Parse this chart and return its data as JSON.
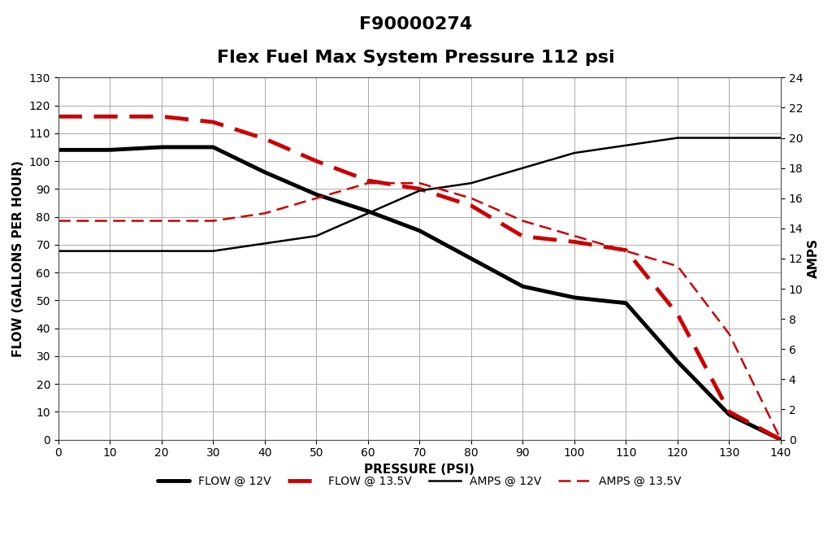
{
  "title1": "F90000274",
  "title2": "Flex Fuel Max System Pressure 112 psi",
  "xlabel": "PRESSURE (PSI)",
  "ylabel_left": "FLOW (GALLONS PER HOUR)",
  "ylabel_right": "AMPS",
  "pressure": [
    0,
    10,
    20,
    30,
    40,
    50,
    60,
    70,
    80,
    90,
    100,
    110,
    120,
    130,
    140
  ],
  "flow_12v": [
    104,
    104,
    105,
    105,
    96,
    88,
    82,
    75,
    65,
    55,
    51,
    49,
    28,
    9,
    0
  ],
  "flow_13v": [
    116,
    116,
    116,
    114,
    108,
    100,
    93,
    90,
    84,
    73,
    71,
    68,
    45,
    10,
    0
  ],
  "amps_12v": [
    12.5,
    12.5,
    12.5,
    12.5,
    13.0,
    13.5,
    15.0,
    16.5,
    17.0,
    18.0,
    19.0,
    19.5,
    20.0,
    20.0,
    20.0
  ],
  "amps_13v": [
    14.5,
    14.5,
    14.5,
    14.5,
    15.0,
    16.0,
    17.0,
    17.0,
    16.0,
    14.5,
    13.5,
    12.5,
    11.5,
    7.0,
    0.0
  ],
  "flow_12v_color": "#000000",
  "flow_13v_color": "#cc0000",
  "amps_12v_color": "#000000",
  "amps_13v_color": "#cc0000",
  "flow_12v_lw": 3.5,
  "flow_13v_lw": 3.5,
  "amps_12v_lw": 1.8,
  "amps_13v_lw": 1.8,
  "xlim": [
    0,
    140
  ],
  "ylim_left": [
    0,
    130
  ],
  "ylim_right": [
    0,
    24
  ],
  "xticks": [
    0,
    10,
    20,
    30,
    40,
    50,
    60,
    70,
    80,
    90,
    100,
    110,
    120,
    130,
    140
  ],
  "yticks_left": [
    0,
    10,
    20,
    30,
    40,
    50,
    60,
    70,
    80,
    90,
    100,
    110,
    120,
    130
  ],
  "yticks_right": [
    0,
    2,
    4,
    6,
    8,
    10,
    12,
    14,
    16,
    18,
    20,
    22,
    24
  ],
  "bg_color": "#ffffff",
  "grid_color": "#aaaaaa",
  "title_fontsize": 16,
  "axis_label_fontsize": 11,
  "tick_fontsize": 10,
  "legend_fontsize": 10
}
